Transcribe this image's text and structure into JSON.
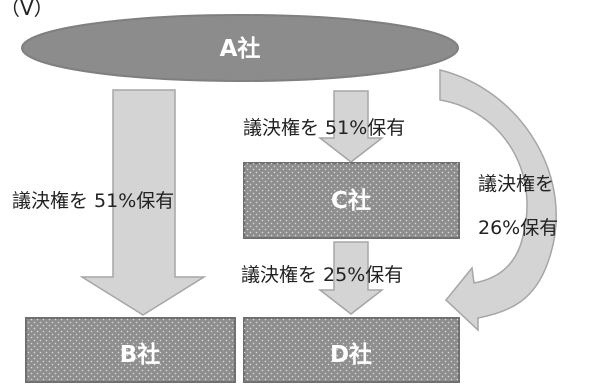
{
  "roman_numeral": "（Ⅴ）",
  "entities": {
    "a": "A社",
    "b": "B社",
    "c": "C社",
    "d": "D社"
  },
  "relations": [
    {
      "from": "A社",
      "to": "B社",
      "label": "議決権を 51%保有",
      "percent": 51
    },
    {
      "from": "A社",
      "to": "C社",
      "label": "議決権を 51%保有",
      "percent": 51
    },
    {
      "from": "C社",
      "to": "D社",
      "label": "議決権を 25%保有",
      "percent": 25
    },
    {
      "from": "A社",
      "to": "D社",
      "label_line1": "議決権を",
      "label_line2": "26%保有",
      "percent": 26
    }
  ],
  "colors": {
    "ellipse_fill": "#8c8c8c",
    "box_fill": "#8e8e8e",
    "arrow_fill": "#d4d4d4",
    "arrow_stroke": "#a6a6a6",
    "text": "#222222"
  }
}
